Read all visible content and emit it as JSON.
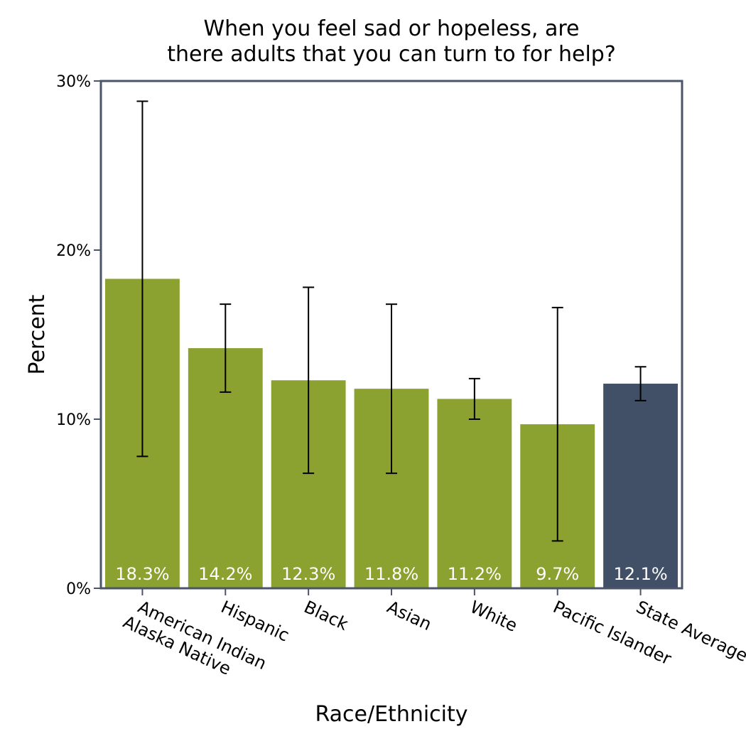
{
  "chart_data": {
    "type": "bar",
    "title": [
      "When you feel sad or hopeless, are",
      "there adults that you can turn to for help?"
    ],
    "xlabel": "Race/Ethnicity",
    "ylabel": "Percent",
    "ylim": [
      0,
      30
    ],
    "yticks": [
      0,
      10,
      20,
      30
    ],
    "ytick_labels": [
      "0%",
      "10%",
      "20%",
      "30%"
    ],
    "categories": [
      [
        "American Indian",
        "Alaska Native"
      ],
      [
        "Hispanic"
      ],
      [
        "Black"
      ],
      [
        "Asian"
      ],
      [
        "White"
      ],
      [
        "Pacific Islander"
      ],
      [
        "State Average"
      ]
    ],
    "values": [
      18.3,
      14.2,
      12.3,
      11.8,
      11.2,
      9.7,
      12.1
    ],
    "value_labels": [
      "18.3%",
      "14.2%",
      "12.3%",
      "11.8%",
      "11.2%",
      "9.7%",
      "12.1%"
    ],
    "error_low": [
      7.8,
      11.6,
      6.8,
      6.8,
      10.0,
      2.8,
      11.1
    ],
    "error_high": [
      28.8,
      16.8,
      17.8,
      16.8,
      12.4,
      16.6,
      13.1
    ],
    "bar_colors": [
      "#8ba130",
      "#8ba130",
      "#8ba130",
      "#8ba130",
      "#8ba130",
      "#8ba130",
      "#415066"
    ],
    "frame_color": "#4a5568",
    "grid": false
  }
}
